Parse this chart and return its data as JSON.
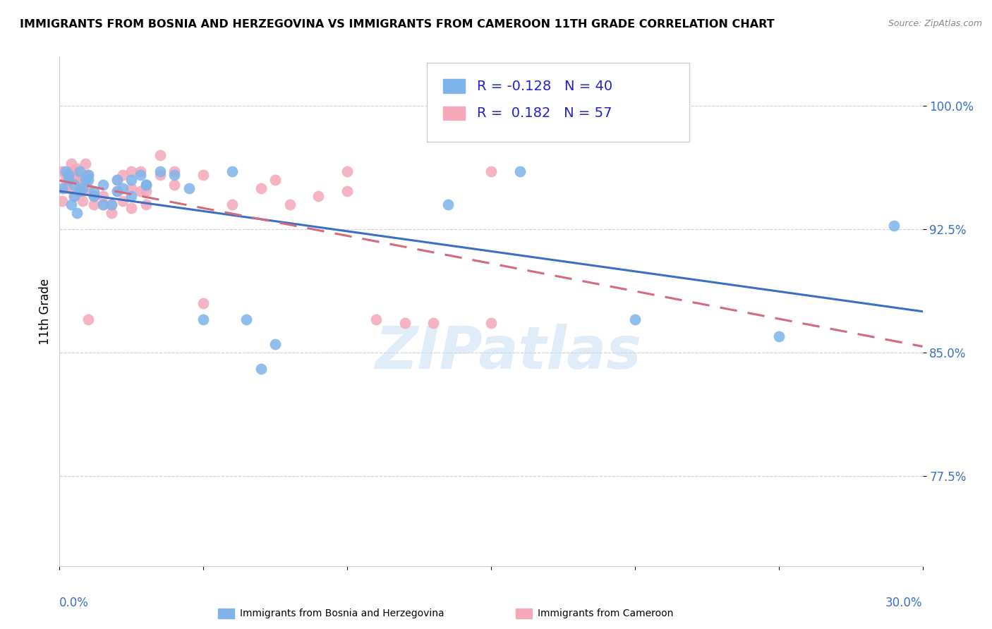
{
  "title": "IMMIGRANTS FROM BOSNIA AND HERZEGOVINA VS IMMIGRANTS FROM CAMEROON 11TH GRADE CORRELATION CHART",
  "source": "Source: ZipAtlas.com",
  "ylabel": "11th Grade",
  "xlim": [
    0.0,
    0.3
  ],
  "ylim": [
    0.72,
    1.03
  ],
  "yticks": [
    0.775,
    0.85,
    0.925,
    1.0
  ],
  "ytick_labels": [
    "77.5%",
    "85.0%",
    "92.5%",
    "100.0%"
  ],
  "bosnia_R": -0.128,
  "bosnia_N": 40,
  "cameroon_R": 0.182,
  "cameroon_N": 57,
  "bosnia_color": "#7EB4EA",
  "cameroon_color": "#F4A7B9",
  "bosnia_line_color": "#3A6FC4",
  "cameroon_line_color": "#D46A7E",
  "bosnia_x": [
    0.001,
    0.002,
    0.003,
    0.004,
    0.005,
    0.006,
    0.007,
    0.008,
    0.009,
    0.01,
    0.012,
    0.015,
    0.018,
    0.02,
    0.022,
    0.025,
    0.028,
    0.03,
    0.035,
    0.04,
    0.003,
    0.005,
    0.007,
    0.01,
    0.012,
    0.015,
    0.02,
    0.025,
    0.03,
    0.045,
    0.05,
    0.06,
    0.065,
    0.07,
    0.075,
    0.135,
    0.16,
    0.2,
    0.25,
    0.29
  ],
  "bosnia_y": [
    0.95,
    0.96,
    0.955,
    0.94,
    0.945,
    0.935,
    0.96,
    0.95,
    0.955,
    0.958,
    0.945,
    0.952,
    0.94,
    0.955,
    0.95,
    0.945,
    0.958,
    0.952,
    0.96,
    0.958,
    0.958,
    0.952,
    0.948,
    0.955,
    0.948,
    0.94,
    0.948,
    0.955,
    0.952,
    0.95,
    0.87,
    0.96,
    0.87,
    0.84,
    0.855,
    0.94,
    0.96,
    0.87,
    0.86,
    0.927
  ],
  "cameroon_x": [
    0.001,
    0.002,
    0.003,
    0.004,
    0.005,
    0.006,
    0.007,
    0.008,
    0.009,
    0.01,
    0.012,
    0.015,
    0.018,
    0.02,
    0.022,
    0.025,
    0.028,
    0.03,
    0.035,
    0.04,
    0.001,
    0.002,
    0.003,
    0.004,
    0.005,
    0.006,
    0.007,
    0.008,
    0.009,
    0.01,
    0.012,
    0.015,
    0.018,
    0.02,
    0.022,
    0.025,
    0.028,
    0.03,
    0.035,
    0.04,
    0.05,
    0.06,
    0.07,
    0.08,
    0.09,
    0.1,
    0.11,
    0.12,
    0.13,
    0.15,
    0.003,
    0.01,
    0.025,
    0.05,
    0.075,
    0.1,
    0.15
  ],
  "cameroon_y": [
    0.96,
    0.955,
    0.95,
    0.965,
    0.958,
    0.962,
    0.955,
    0.948,
    0.965,
    0.958,
    0.94,
    0.945,
    0.94,
    0.955,
    0.958,
    0.95,
    0.96,
    0.948,
    0.97,
    0.96,
    0.942,
    0.95,
    0.955,
    0.96,
    0.945,
    0.955,
    0.95,
    0.942,
    0.958,
    0.95,
    0.945,
    0.94,
    0.935,
    0.948,
    0.942,
    0.938,
    0.948,
    0.94,
    0.958,
    0.952,
    0.958,
    0.94,
    0.95,
    0.94,
    0.945,
    0.948,
    0.87,
    0.868,
    0.868,
    0.868,
    0.955,
    0.87,
    0.96,
    0.88,
    0.955,
    0.96,
    0.96
  ]
}
